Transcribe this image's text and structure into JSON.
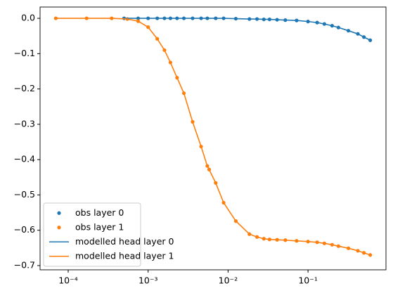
{
  "chart_data": {
    "type": "line",
    "xscale": "log",
    "xlim": [
      4.45e-05,
      0.944
    ],
    "ylim": [
      -0.712,
      0.032
    ],
    "xticks": [
      {
        "value": 0.0001,
        "label": "10⁻⁴"
      },
      {
        "value": 0.001,
        "label": "10⁻³"
      },
      {
        "value": 0.01,
        "label": "10⁻²"
      },
      {
        "value": 0.1,
        "label": "10⁻¹"
      }
    ],
    "yticks": [
      {
        "value": 0,
        "label": "0.0"
      },
      {
        "value": -0.1,
        "label": "−0.1"
      },
      {
        "value": -0.2,
        "label": "−0.2"
      },
      {
        "value": -0.3,
        "label": "−0.3"
      },
      {
        "value": -0.4,
        "label": "−0.4"
      },
      {
        "value": -0.5,
        "label": "−0.5"
      },
      {
        "value": -0.6,
        "label": "−0.6"
      },
      {
        "value": -0.7,
        "label": "−0.7"
      }
    ],
    "legend": "lower left",
    "series": [
      {
        "name": "obs layer 0",
        "color": "#1f77b4",
        "mode": "markers",
        "x": [
          0.0005,
          0.00075,
          0.001,
          0.0013,
          0.0016,
          0.0019,
          0.0023,
          0.0028,
          0.0036,
          0.0046,
          0.0055,
          0.007,
          0.0088,
          0.0125,
          0.0185,
          0.023,
          0.028,
          0.033,
          0.041,
          0.052,
          0.072,
          0.1,
          0.13,
          0.16,
          0.2,
          0.24,
          0.32,
          0.42,
          0.5,
          0.6
        ],
        "values": [
          0,
          0,
          0,
          0,
          0,
          0,
          0,
          0,
          0,
          0,
          0,
          0,
          0,
          -0.001,
          -0.002,
          -0.002,
          -0.003,
          -0.003,
          -0.004,
          -0.005,
          -0.006,
          -0.009,
          -0.012,
          -0.016,
          -0.021,
          -0.026,
          -0.035,
          -0.044,
          -0.053,
          -0.062
        ]
      },
      {
        "name": "obs layer 1",
        "color": "#ff7f0e",
        "mode": "markers",
        "x": [
          7e-05,
          0.00017,
          0.00035,
          0.00055,
          0.00075,
          0.001,
          0.0013,
          0.0016,
          0.0019,
          0.0023,
          0.0028,
          0.0036,
          0.0046,
          0.0055,
          0.0058,
          0.007,
          0.0088,
          0.0125,
          0.0185,
          0.023,
          0.028,
          0.033,
          0.041,
          0.052,
          0.072,
          0.1,
          0.13,
          0.16,
          0.2,
          0.24,
          0.32,
          0.42,
          0.5,
          0.6
        ],
        "values": [
          0,
          0,
          0,
          -0.002,
          -0.008,
          -0.025,
          -0.058,
          -0.09,
          -0.125,
          -0.168,
          -0.212,
          -0.293,
          -0.363,
          -0.418,
          -0.428,
          -0.466,
          -0.522,
          -0.574,
          -0.611,
          -0.619,
          -0.624,
          -0.626,
          -0.627,
          -0.628,
          -0.63,
          -0.632,
          -0.634,
          -0.637,
          -0.641,
          -0.645,
          -0.651,
          -0.658,
          -0.664,
          -0.67
        ]
      },
      {
        "name": "modelled head layer 0",
        "color": "#1f77b4",
        "mode": "line",
        "x": [
          0.0005,
          0.00075,
          0.001,
          0.0013,
          0.0016,
          0.0019,
          0.0023,
          0.0028,
          0.0036,
          0.0046,
          0.0055,
          0.007,
          0.0088,
          0.0125,
          0.0185,
          0.023,
          0.028,
          0.033,
          0.041,
          0.052,
          0.072,
          0.1,
          0.13,
          0.16,
          0.2,
          0.24,
          0.32,
          0.42,
          0.5,
          0.6
        ],
        "values": [
          0,
          0,
          0,
          0,
          0,
          0,
          0,
          0,
          0,
          0,
          0,
          0,
          0,
          -0.001,
          -0.002,
          -0.002,
          -0.003,
          -0.003,
          -0.004,
          -0.005,
          -0.006,
          -0.009,
          -0.012,
          -0.016,
          -0.021,
          -0.026,
          -0.035,
          -0.044,
          -0.053,
          -0.062
        ]
      },
      {
        "name": "modelled head layer 1",
        "color": "#ff7f0e",
        "mode": "line",
        "x": [
          7e-05,
          0.00017,
          0.00035,
          0.00055,
          0.00075,
          0.001,
          0.0013,
          0.0016,
          0.0019,
          0.0023,
          0.0028,
          0.0036,
          0.0046,
          0.0055,
          0.0058,
          0.007,
          0.0088,
          0.0125,
          0.0185,
          0.023,
          0.028,
          0.033,
          0.041,
          0.052,
          0.072,
          0.1,
          0.13,
          0.16,
          0.2,
          0.24,
          0.32,
          0.42,
          0.5,
          0.6
        ],
        "values": [
          0,
          0,
          0,
          -0.002,
          -0.008,
          -0.025,
          -0.058,
          -0.09,
          -0.125,
          -0.168,
          -0.212,
          -0.293,
          -0.363,
          -0.418,
          -0.428,
          -0.466,
          -0.522,
          -0.574,
          -0.611,
          -0.619,
          -0.624,
          -0.626,
          -0.627,
          -0.628,
          -0.63,
          -0.632,
          -0.634,
          -0.637,
          -0.641,
          -0.645,
          -0.651,
          -0.658,
          -0.664,
          -0.67
        ]
      }
    ]
  }
}
